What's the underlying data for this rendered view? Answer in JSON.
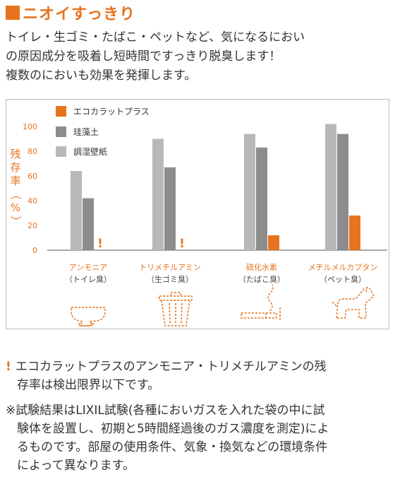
{
  "header": {
    "title": "ニオイすっきり"
  },
  "intro_lines": [
    "トイレ・生ゴミ・たばこ・ペットなど、気になるにおい",
    "の原因成分を吸着し短時間ですっきり脱臭します！",
    "複数のにおいも効果を発揮します。"
  ],
  "colors": {
    "accent": "#e8731f",
    "gray_dark": "#8c8c8c",
    "gray_mid": "#b8b8b8",
    "gray_light": "#d9d9d9"
  },
  "chart_data": {
    "type": "bar",
    "ylabel": "残存率（%）",
    "ylim": [
      0,
      100
    ],
    "yticks": [
      "0",
      "20",
      "40",
      "60",
      "80",
      "100"
    ],
    "legend_position": "top-left",
    "categories": [
      {
        "name": "アンモニア",
        "sub": "（トイレ臭）",
        "icon": "toilet-icon"
      },
      {
        "name": "トリメチルアミン",
        "sub": "（生ゴミ臭）",
        "icon": "trash-can-icon"
      },
      {
        "name": "硫化水素",
        "sub": "（たばこ臭）",
        "icon": "cigarette-icon"
      },
      {
        "name": "メチルメルカプタン",
        "sub": "（ペット臭）",
        "icon": "dog-icon"
      }
    ],
    "series": [
      {
        "name": "調湿壁紙",
        "color": "#b8b8b8",
        "values": [
          64,
          90,
          94,
          102
        ]
      },
      {
        "name": "珪藻土",
        "color": "#8c8c8c",
        "values": [
          42,
          67,
          83,
          94
        ]
      },
      {
        "name": "エコカラットプラス",
        "color": "#e8731f",
        "values": [
          null,
          null,
          12,
          28
        ]
      }
    ],
    "legend_order": [
      "エコカラットプラス",
      "珪藻土",
      "調湿壁紙"
    ],
    "below_limit_mark": "!"
  },
  "notes": {
    "limit_mark": "!",
    "limit_lines": [
      "エコカラットプラスのアンモニア・トリメチルアミンの残",
      "存率は検出限界以下です。"
    ],
    "test_lines": [
      "※試験結果はLIXIL試験(各種においガスを入れた袋の中に試",
      "験体を設置し、初期と5時間経過後のガス濃度を測定)によ",
      "るものです。部屋の使用条件、気象・換気などの環境条件",
      "によって異なります。"
    ]
  }
}
